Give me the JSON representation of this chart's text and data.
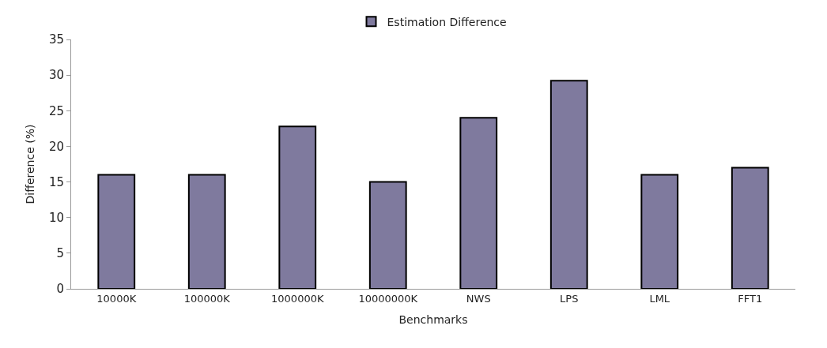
{
  "chart_data": {
    "type": "bar",
    "xlabel": "Benchmarks",
    "ylabel": "Difference (%)",
    "categories": [
      "10000K",
      "100000K",
      "1000000K",
      "10000000K",
      "NWS",
      "LPS",
      "LML",
      "FFT1"
    ],
    "series": [
      {
        "name": "Estimation Difference",
        "color": "#7f7a9e",
        "values": [
          16,
          16,
          22.8,
          15,
          24,
          29.2,
          16,
          17
        ]
      }
    ],
    "ylim": [
      0,
      35
    ],
    "yticks": [
      0,
      5,
      10,
      15,
      20,
      25,
      30,
      35
    ],
    "legend": "top"
  }
}
